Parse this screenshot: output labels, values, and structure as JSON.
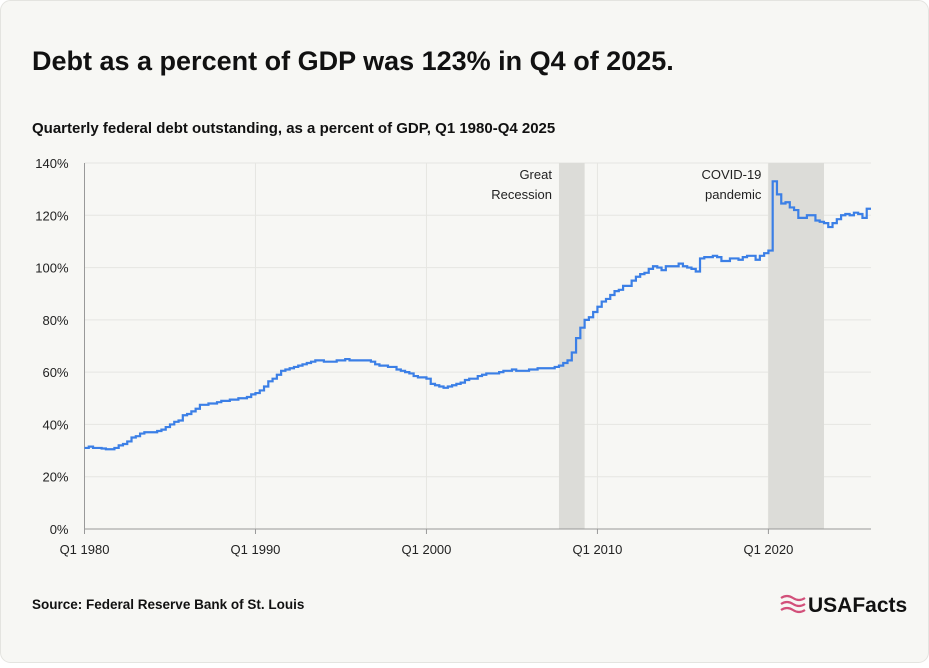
{
  "chart_data": {
    "type": "line",
    "step": true,
    "title": "Debt as a percent of GDP was 123% in Q4 of 2025.",
    "subtitle": "Quarterly federal debt outstanding, as a percent of GDP, Q1 1980-Q4 2025",
    "source": "Source: Federal Reserve Bank of St. Louis",
    "brand": "USAFacts",
    "x": [
      1980,
      1980.25,
      1980.5,
      1980.75,
      1981,
      1981.25,
      1981.5,
      1981.75,
      1982,
      1982.25,
      1982.5,
      1982.75,
      1983,
      1983.25,
      1983.5,
      1983.75,
      1984,
      1984.25,
      1984.5,
      1984.75,
      1985,
      1985.25,
      1985.5,
      1985.75,
      1986,
      1986.25,
      1986.5,
      1986.75,
      1987,
      1987.25,
      1987.5,
      1987.75,
      1988,
      1988.25,
      1988.5,
      1988.75,
      1989,
      1989.25,
      1989.5,
      1989.75,
      1990,
      1990.25,
      1990.5,
      1990.75,
      1991,
      1991.25,
      1991.5,
      1991.75,
      1992,
      1992.25,
      1992.5,
      1992.75,
      1993,
      1993.25,
      1993.5,
      1993.75,
      1994,
      1994.25,
      1994.5,
      1994.75,
      1995,
      1995.25,
      1995.5,
      1995.75,
      1996,
      1996.25,
      1996.5,
      1996.75,
      1997,
      1997.25,
      1997.5,
      1997.75,
      1998,
      1998.25,
      1998.5,
      1998.75,
      1999,
      1999.25,
      1999.5,
      1999.75,
      2000,
      2000.25,
      2000.5,
      2000.75,
      2001,
      2001.25,
      2001.5,
      2001.75,
      2002,
      2002.25,
      2002.5,
      2002.75,
      2003,
      2003.25,
      2003.5,
      2003.75,
      2004,
      2004.25,
      2004.5,
      2004.75,
      2005,
      2005.25,
      2005.5,
      2005.75,
      2006,
      2006.25,
      2006.5,
      2006.75,
      2007,
      2007.25,
      2007.5,
      2007.75,
      2008,
      2008.25,
      2008.5,
      2008.75,
      2009,
      2009.25,
      2009.5,
      2009.75,
      2010,
      2010.25,
      2010.5,
      2010.75,
      2011,
      2011.25,
      2011.5,
      2011.75,
      2012,
      2012.25,
      2012.5,
      2012.75,
      2013,
      2013.25,
      2013.5,
      2013.75,
      2014,
      2014.25,
      2014.5,
      2014.75,
      2015,
      2015.25,
      2015.5,
      2015.75,
      2016,
      2016.25,
      2016.5,
      2016.75,
      2017,
      2017.25,
      2017.5,
      2017.75,
      2018,
      2018.25,
      2018.5,
      2018.75,
      2019,
      2019.25,
      2019.5,
      2019.75,
      2020,
      2020.25,
      2020.5,
      2020.75,
      2021,
      2021.25,
      2021.5,
      2021.75,
      2022,
      2022.25,
      2022.5,
      2022.75,
      2023,
      2023.25,
      2023.5,
      2023.75,
      2024,
      2024.25,
      2024.5,
      2024.75,
      2025,
      2025.25,
      2025.5,
      2025.75
    ],
    "series": [
      {
        "color": "#3b7fe6",
        "values": [
          31,
          31.5,
          31,
          31,
          30.8,
          30.5,
          30.5,
          31,
          32,
          32.5,
          33.5,
          35,
          35.5,
          36.5,
          37,
          37,
          37,
          37.5,
          38,
          39,
          40,
          41,
          41.5,
          43.5,
          44,
          45,
          46,
          47.5,
          47.5,
          48,
          48,
          48.5,
          49,
          49,
          49.5,
          49.5,
          50,
          50,
          50.5,
          51.5,
          52,
          53,
          54.5,
          56.5,
          57.5,
          59,
          60.5,
          61,
          61.5,
          62,
          62.5,
          63,
          63.5,
          64,
          64.5,
          64.5,
          64,
          64,
          64,
          64.5,
          64.5,
          65,
          64.5,
          64.5,
          64.5,
          64.5,
          64.5,
          64,
          63,
          62.5,
          62.5,
          62,
          62,
          61,
          60.5,
          60,
          59.5,
          58.5,
          58,
          58,
          57.5,
          55.5,
          55,
          54.5,
          54,
          54.5,
          55,
          55.5,
          56,
          57,
          57.5,
          57.5,
          58.5,
          59,
          59.5,
          59.5,
          59.5,
          60,
          60.5,
          60.5,
          61,
          60.5,
          60.5,
          60.5,
          61,
          61,
          61.5,
          61.5,
          61.5,
          61.5,
          62,
          62.5,
          63.5,
          64.5,
          67.5,
          73,
          77,
          80,
          81,
          83,
          85,
          87,
          88,
          89.5,
          91,
          91.5,
          93,
          93,
          95,
          96.5,
          97.5,
          98,
          99.5,
          100.5,
          100,
          99,
          100.5,
          100.5,
          100.5,
          101.5,
          100.5,
          100,
          99.5,
          98.5,
          103.5,
          104,
          104,
          104.5,
          104,
          102.5,
          102.5,
          103.5,
          103.5,
          103,
          104,
          104.5,
          104.5,
          103,
          104.5,
          105.5,
          106.5,
          133,
          128,
          124.5,
          125,
          123,
          122,
          119,
          119,
          120,
          120,
          118,
          117.5,
          117,
          115.5,
          117,
          118.5,
          120,
          120.5,
          120,
          121,
          120.5,
          119,
          122.5
        ]
      }
    ],
    "shading": [
      {
        "label": "Great Recession",
        "start": 2007.75,
        "end": 2009.25,
        "color": "#dcdcd8"
      },
      {
        "label": "COVID-19 pandemic",
        "start": 2020,
        "end": 2023.25,
        "color": "#dcdcd8"
      }
    ],
    "xlim": [
      1980,
      2026
    ],
    "xticks": [
      {
        "value": 1980,
        "label": "Q1 1980"
      },
      {
        "value": 1990,
        "label": "Q1 1990"
      },
      {
        "value": 2000,
        "label": "Q1 2000"
      },
      {
        "value": 2010,
        "label": "Q1 2010"
      },
      {
        "value": 2020,
        "label": "Q1 2020"
      }
    ],
    "ylim": [
      0,
      140
    ],
    "yticks": [
      {
        "value": 0,
        "label": "0%"
      },
      {
        "value": 20,
        "label": "20%"
      },
      {
        "value": 40,
        "label": "40%"
      },
      {
        "value": 60,
        "label": "60%"
      },
      {
        "value": 80,
        "label": "80%"
      },
      {
        "value": 100,
        "label": "100%"
      },
      {
        "value": 120,
        "label": "120%"
      },
      {
        "value": 140,
        "label": "140%"
      }
    ],
    "grid": true
  }
}
